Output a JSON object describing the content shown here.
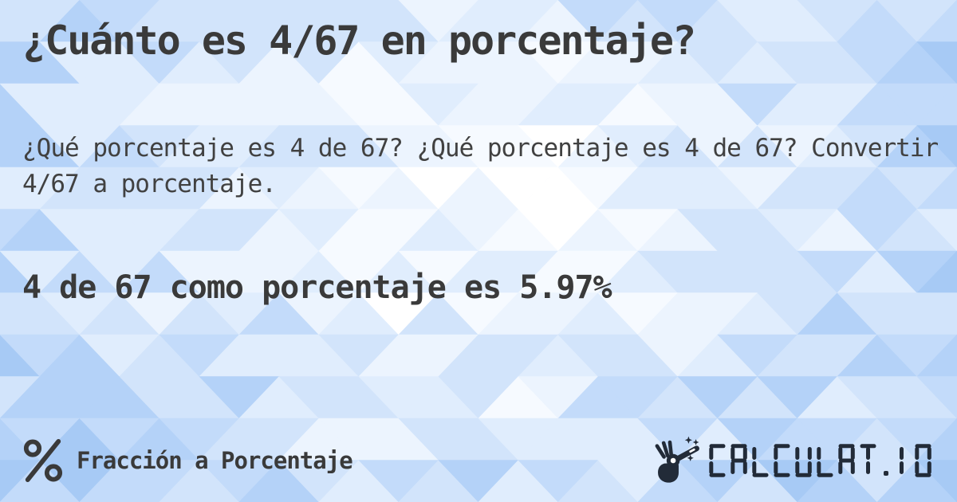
{
  "page": {
    "title": "¿Cuánto es 4/67 en porcentaje?",
    "description": "¿Qué porcentaje es 4 de 67? ¿Qué porcentaje es 4 de 67? Convertir 4/67 a porcentaje.",
    "answer": "4 de 67 como porcentaje es 5.97%"
  },
  "footer": {
    "category": {
      "icon": "percent-icon",
      "label": "Fracción a Porcentaje"
    },
    "logo": {
      "icon": "magic-wand-hand-icon",
      "text": "CALCULAT.IO"
    }
  },
  "colors": {
    "text_dark": "#3a3a3a",
    "text_body": "#414141",
    "logo_dark": "#222b38",
    "background_base": "#dcebfd",
    "pattern_palette": [
      "#ffffff",
      "#f6faff",
      "#ecf4fe",
      "#e0edfd",
      "#d2e4fb",
      "#c3dbfa",
      "#b4d2f8",
      "#a7caf5"
    ]
  }
}
